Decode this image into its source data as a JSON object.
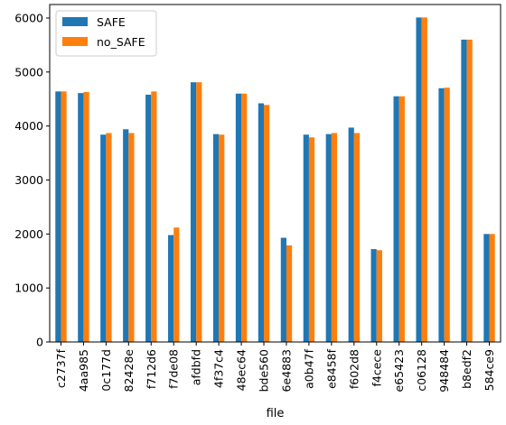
{
  "chart_data": {
    "type": "bar",
    "xlabel": "file",
    "ylabel": "",
    "ylim": [
      0,
      6250
    ],
    "yticks": [
      0,
      1000,
      2000,
      3000,
      4000,
      5000,
      6000
    ],
    "categories": [
      "c2737f",
      "4aa985",
      "0c177d",
      "82428e",
      "f712d6",
      "f7de08",
      "afdbfd",
      "4f37c4",
      "48ec64",
      "bde560",
      "6e4883",
      "a0b47f",
      "e8458f",
      "f602d8",
      "f4cece",
      "e65423",
      "c06128",
      "948484",
      "b8edf2",
      "584ce9"
    ],
    "series": [
      {
        "name": "SAFE",
        "color": "#1f77b4",
        "values": [
          4640,
          4610,
          3840,
          3940,
          4580,
          1980,
          4810,
          3850,
          4600,
          4420,
          1930,
          3840,
          3850,
          3970,
          1720,
          4550,
          6010,
          4700,
          5600,
          2000
        ]
      },
      {
        "name": "no_SAFE",
        "color": "#ff7f0e",
        "values": [
          4640,
          4630,
          3870,
          3870,
          4640,
          2120,
          4810,
          3840,
          4600,
          4390,
          1790,
          3790,
          3870,
          3870,
          1700,
          4550,
          6010,
          4710,
          5600,
          2000
        ]
      }
    ],
    "legend": "top-left",
    "grid": false
  }
}
